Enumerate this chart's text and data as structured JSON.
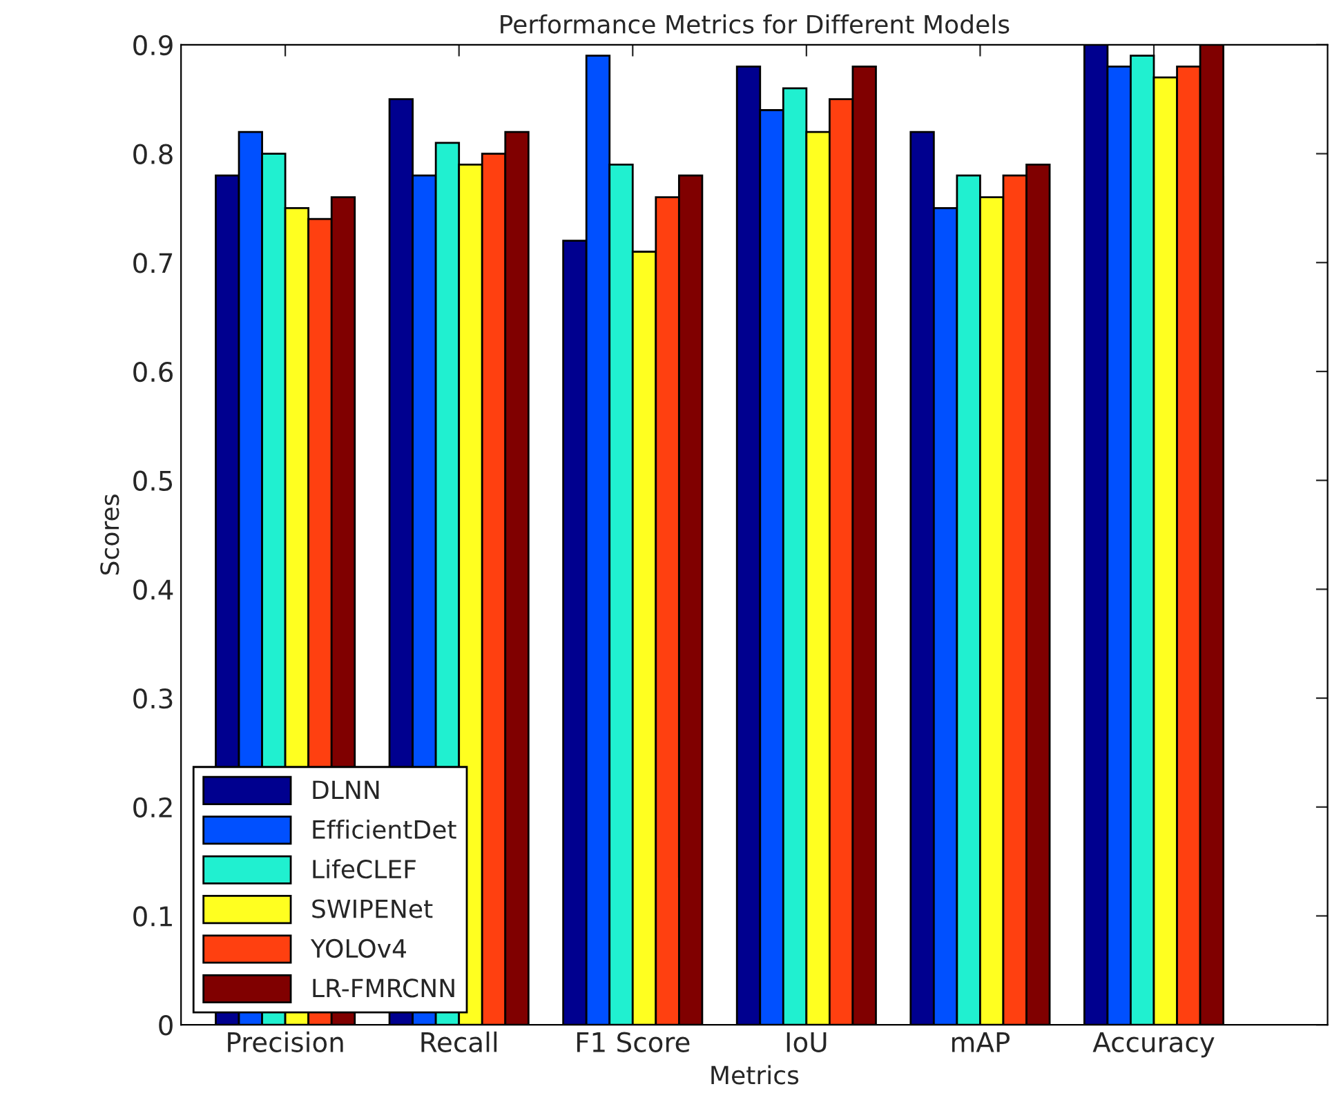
{
  "chart_data": {
    "type": "bar",
    "title": "Performance Metrics for Different Models",
    "xlabel": "Metrics",
    "ylabel": "Scores",
    "categories": [
      "Precision",
      "Recall",
      "F1 Score",
      "IoU",
      "mAP",
      "Accuracy"
    ],
    "series": [
      {
        "name": "DLNN",
        "color": "#00008f",
        "values": [
          0.78,
          0.85,
          0.72,
          0.88,
          0.82,
          0.9
        ]
      },
      {
        "name": "EfficientDet",
        "color": "#0050ff",
        "values": [
          0.82,
          0.78,
          0.89,
          0.84,
          0.75,
          0.88
        ]
      },
      {
        "name": "LifeCLEF",
        "color": "#20f0d0",
        "values": [
          0.8,
          0.81,
          0.79,
          0.86,
          0.78,
          0.89
        ]
      },
      {
        "name": "SWIPENet",
        "color": "#ffff20",
        "values": [
          0.75,
          0.79,
          0.71,
          0.82,
          0.76,
          0.87
        ]
      },
      {
        "name": "YOLOv4",
        "color": "#ff4010",
        "values": [
          0.74,
          0.8,
          0.76,
          0.85,
          0.78,
          0.88
        ]
      },
      {
        "name": "LR-FMRCNN",
        "color": "#800000",
        "values": [
          0.76,
          0.82,
          0.78,
          0.88,
          0.79,
          0.9
        ]
      }
    ],
    "ylim": [
      0,
      0.9
    ],
    "yticks": [
      0,
      0.1,
      0.2,
      0.3,
      0.4,
      0.5,
      0.6,
      0.7,
      0.8,
      0.9
    ],
    "legend": "lower left",
    "grid": false
  }
}
